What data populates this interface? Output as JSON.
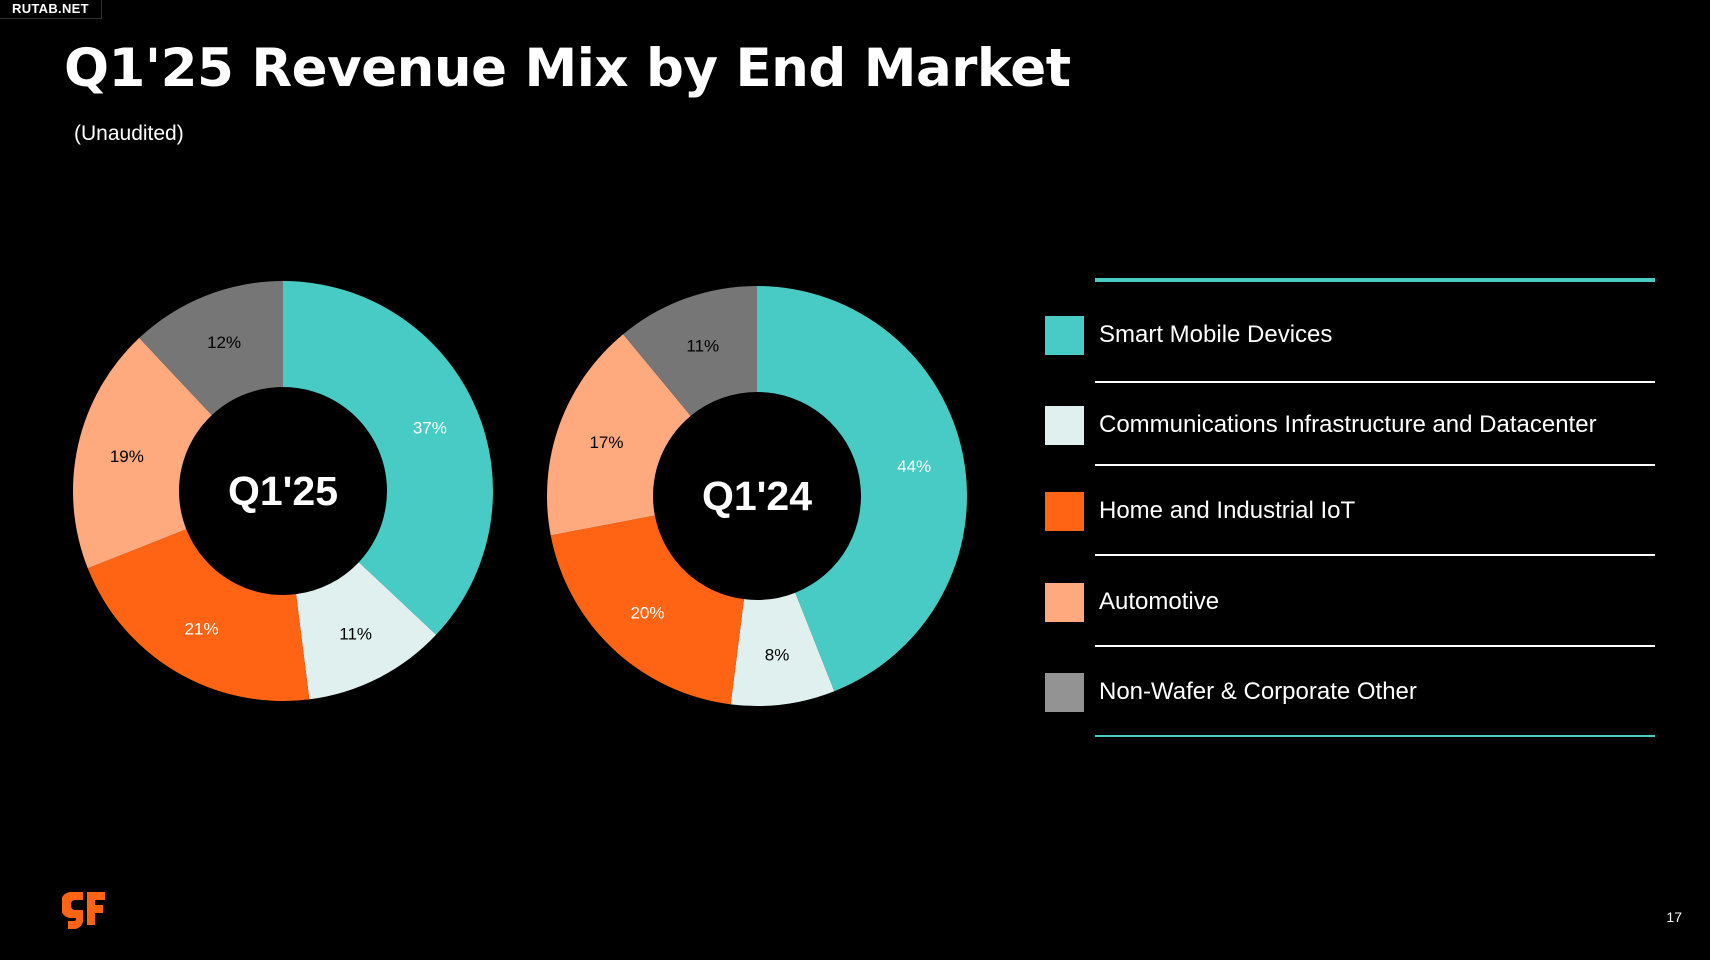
{
  "watermark": "RUTAB.NET",
  "title": "Q1'25 Revenue Mix by End Market",
  "subtitle": "(Unaudited)",
  "page_number": "17",
  "logo_icon": "gf-logo-icon",
  "colors": {
    "smart_mobile": "#48cbc4",
    "comm_infra": "#dff0ee",
    "home_iot": "#ff6414",
    "automotive": "#ffa97f",
    "non_wafer": "#767676",
    "legend_accent": "#48cbc4",
    "background": "#000000",
    "logo": "#ff6414"
  },
  "chart_data": [
    {
      "type": "pie",
      "variant": "donut",
      "center_label": "Q1'25",
      "categories": [
        "Smart Mobile Devices",
        "Communications Infrastructure and Datacenter",
        "Home and Industrial IoT",
        "Automotive",
        "Non-Wafer & Corporate Other"
      ],
      "values": [
        37,
        11,
        21,
        19,
        12
      ],
      "labels": [
        "37%",
        "11%",
        "21%",
        "19%",
        "12%"
      ],
      "label_colors": [
        "#ffffff",
        "#000000",
        "#ffffff",
        "#000000",
        "#000000"
      ]
    },
    {
      "type": "pie",
      "variant": "donut",
      "center_label": "Q1'24",
      "categories": [
        "Smart Mobile Devices",
        "Communications Infrastructure and Datacenter",
        "Home and Industrial IoT",
        "Automotive",
        "Non-Wafer & Corporate Other"
      ],
      "values": [
        44,
        8,
        20,
        17,
        11
      ],
      "labels": [
        "44%",
        "8%",
        "20%",
        "17%",
        "11%"
      ],
      "label_colors": [
        "#ffffff",
        "#000000",
        "#ffffff",
        "#000000",
        "#000000"
      ]
    }
  ],
  "legend": {
    "items": [
      {
        "label": "Smart Mobile Devices",
        "color": "#48cbc4"
      },
      {
        "label": "Communications Infrastructure and Datacenter",
        "color": "#dff0ee"
      },
      {
        "label": "Home and Industrial IoT",
        "color": "#ff6414"
      },
      {
        "label": "Automotive",
        "color": "#ffa97f"
      },
      {
        "label": "Non-Wafer & Corporate Other",
        "color": "#939393"
      }
    ]
  }
}
